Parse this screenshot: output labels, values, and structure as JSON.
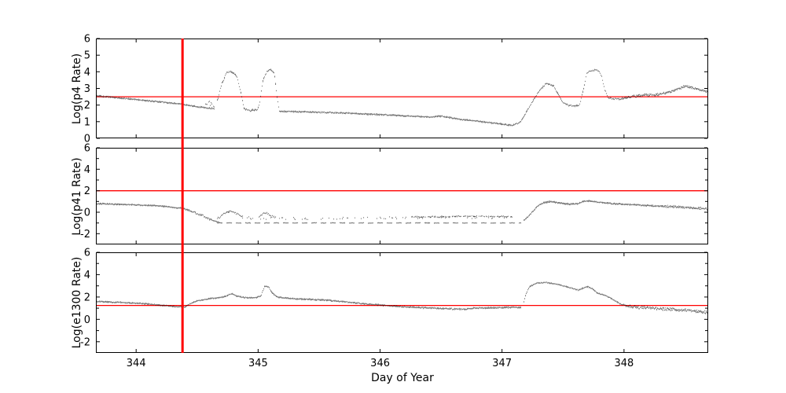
{
  "figure": {
    "background": "#ffffff",
    "axis_color": "#000000",
    "data_color": "#000000",
    "threshold_color": "#ff0000"
  },
  "xlabel": "Day of Year",
  "chart_data": [
    {
      "type": "scatter",
      "ylabel": "Log(p4 Rate)",
      "xlim": [
        343.67,
        348.69
      ],
      "ylim": [
        0,
        6
      ],
      "xticks": [
        344,
        345,
        346,
        347,
        348
      ],
      "xticklabels": [
        "344",
        "345",
        "346",
        "347",
        "348"
      ],
      "yticks_major": [
        0,
        1,
        2,
        3,
        4,
        5,
        6
      ],
      "yticklabels": [
        "0",
        "1",
        "2",
        "3",
        "4",
        "5",
        "6"
      ],
      "yticks_minor": [],
      "hline": 2.5,
      "vline": 344.38,
      "grid": false,
      "segments": [
        {
          "points": [
            [
              343.67,
              2.55
            ],
            [
              344.0,
              2.33
            ],
            [
              344.38,
              2.05
            ],
            [
              344.52,
              1.88
            ],
            [
              344.64,
              1.78
            ]
          ],
          "density": 2,
          "spread": 0.05
        },
        {
          "points": [
            [
              344.56,
              2.0
            ],
            [
              344.6,
              2.15
            ],
            [
              344.64,
              1.95
            ]
          ],
          "density": 0.7,
          "spread": 0.2
        },
        {
          "points": [
            [
              344.66,
              2.2
            ],
            [
              344.7,
              3.3
            ],
            [
              344.74,
              3.95
            ],
            [
              344.78,
              4.0
            ],
            [
              344.82,
              3.75
            ],
            [
              344.86,
              2.6
            ],
            [
              344.88,
              1.8
            ],
            [
              344.92,
              1.68
            ],
            [
              344.99,
              1.7
            ],
            [
              345.01,
              2.2
            ],
            [
              345.04,
              3.6
            ],
            [
              345.07,
              4.0
            ],
            [
              345.1,
              4.15
            ],
            [
              345.13,
              3.9
            ],
            [
              345.15,
              2.6
            ],
            [
              345.17,
              1.7
            ]
          ],
          "density": 1.6,
          "spread": 0.07
        },
        {
          "points": [
            [
              345.17,
              1.62
            ],
            [
              345.6,
              1.55
            ],
            [
              346.0,
              1.42
            ],
            [
              346.4,
              1.28
            ],
            [
              346.5,
              1.33
            ],
            [
              346.65,
              1.15
            ],
            [
              347.0,
              0.85
            ],
            [
              347.08,
              0.78
            ]
          ],
          "density": 2,
          "spread": 0.05
        },
        {
          "points": [
            [
              347.08,
              0.78
            ],
            [
              347.15,
              1.0
            ],
            [
              347.22,
              1.9
            ],
            [
              347.3,
              2.85
            ],
            [
              347.36,
              3.3
            ],
            [
              347.42,
              3.15
            ],
            [
              347.46,
              2.6
            ],
            [
              347.5,
              2.1
            ],
            [
              347.55,
              1.97
            ],
            [
              347.63,
              1.95
            ]
          ],
          "density": 1.6,
          "spread": 0.06
        },
        {
          "points": [
            [
              347.63,
              2.0
            ],
            [
              347.66,
              2.8
            ],
            [
              347.69,
              3.9
            ],
            [
              347.72,
              4.05
            ],
            [
              347.78,
              4.1
            ],
            [
              347.81,
              3.8
            ],
            [
              347.84,
              2.9
            ],
            [
              347.87,
              2.4
            ],
            [
              347.95,
              2.35
            ]
          ],
          "density": 1.2,
          "spread": 0.07
        },
        {
          "points": [
            [
              347.95,
              2.35
            ],
            [
              348.1,
              2.55
            ],
            [
              348.2,
              2.6
            ],
            [
              348.3,
              2.65
            ],
            [
              348.4,
              2.85
            ],
            [
              348.5,
              3.15
            ],
            [
              348.57,
              3.0
            ],
            [
              348.69,
              2.78
            ]
          ],
          "density": 2,
          "spread": 0.09
        }
      ]
    },
    {
      "type": "scatter",
      "ylabel": "Log(p41 Rate)",
      "xlim": [
        343.67,
        348.69
      ],
      "ylim": [
        -3,
        6
      ],
      "xticks": [
        344,
        345,
        346,
        347,
        348
      ],
      "xticklabels": [],
      "yticks_major": [
        -2,
        0,
        2,
        4,
        6
      ],
      "yticklabels": [
        "-2",
        "0",
        "2",
        "4",
        "6"
      ],
      "yticks_minor": [
        -1,
        1,
        3,
        5
      ],
      "hline": 2.0,
      "vline": 344.38,
      "grid": false,
      "segments": [
        {
          "points": [
            [
              343.67,
              0.8
            ],
            [
              344.0,
              0.68
            ],
            [
              344.2,
              0.58
            ],
            [
              344.38,
              0.35
            ]
          ],
          "density": 2,
          "spread": 0.07
        },
        {
          "points": [
            [
              344.38,
              0.35
            ],
            [
              344.46,
              0.05
            ],
            [
              344.54,
              -0.35
            ],
            [
              344.62,
              -0.75
            ],
            [
              344.68,
              -0.95
            ]
          ],
          "density": 1.5,
          "spread": 0.12
        },
        {
          "points": [
            [
              344.66,
              -0.6
            ],
            [
              344.7,
              -0.3
            ],
            [
              344.74,
              0.0
            ],
            [
              344.78,
              0.05
            ],
            [
              344.83,
              -0.2
            ],
            [
              344.87,
              -0.45
            ]
          ],
          "density": 1.2,
          "spread": 0.12
        },
        {
          "points": [
            [
              345.0,
              -0.5
            ],
            [
              345.03,
              -0.2
            ],
            [
              345.06,
              -0.05
            ],
            [
              345.09,
              -0.25
            ],
            [
              345.13,
              -0.5
            ]
          ],
          "density": 1.0,
          "spread": 0.12
        },
        {
          "points": [
            [
              344.66,
              -1.0
            ],
            [
              347.15,
              -1.0
            ]
          ],
          "density": 1.1,
          "spread": 0.025,
          "dash": true
        },
        {
          "points": [
            [
              344.9,
              -0.55
            ],
            [
              345.6,
              -0.6
            ],
            [
              346.2,
              -0.5
            ],
            [
              347.1,
              -0.5
            ]
          ],
          "density": 0.25,
          "spread": 0.15
        },
        {
          "points": [
            [
              346.25,
              -0.45
            ],
            [
              346.7,
              -0.38
            ],
            [
              347.08,
              -0.42
            ]
          ],
          "density": 0.8,
          "spread": 0.07
        },
        {
          "points": [
            [
              347.17,
              -0.8
            ],
            [
              347.22,
              -0.3
            ],
            [
              347.28,
              0.5
            ],
            [
              347.34,
              0.9
            ],
            [
              347.4,
              1.0
            ],
            [
              347.47,
              0.85
            ],
            [
              347.55,
              0.75
            ],
            [
              347.62,
              0.8
            ],
            [
              347.66,
              1.0
            ],
            [
              347.72,
              1.05
            ],
            [
              347.78,
              0.95
            ],
            [
              347.9,
              0.8
            ],
            [
              348.1,
              0.68
            ],
            [
              348.3,
              0.55
            ]
          ],
          "density": 2,
          "spread": 0.08
        },
        {
          "points": [
            [
              348.3,
              0.55
            ],
            [
              348.5,
              0.45
            ],
            [
              348.69,
              0.3
            ]
          ],
          "density": 2,
          "spread": 0.13
        }
      ]
    },
    {
      "type": "scatter",
      "ylabel": "Log(e1300 Rate)",
      "xlim": [
        343.67,
        348.69
      ],
      "ylim": [
        -3,
        6
      ],
      "xticks": [
        344,
        345,
        346,
        347,
        348
      ],
      "xticklabels": [
        "344",
        "345",
        "346",
        "347",
        "348"
      ],
      "yticks_major": [
        -2,
        0,
        2,
        4,
        6
      ],
      "yticklabels": [
        "-2",
        "0",
        "2",
        "4",
        "6"
      ],
      "yticks_minor": [
        -1,
        1,
        3,
        5
      ],
      "hline": 1.25,
      "vline": 344.38,
      "grid": false,
      "segments": [
        {
          "points": [
            [
              343.67,
              1.6
            ],
            [
              344.0,
              1.45
            ],
            [
              344.15,
              1.32
            ],
            [
              344.3,
              1.15
            ],
            [
              344.4,
              1.1
            ]
          ],
          "density": 2,
          "spread": 0.07
        },
        {
          "points": [
            [
              344.4,
              1.12
            ],
            [
              344.45,
              1.45
            ],
            [
              344.5,
              1.65
            ],
            [
              344.6,
              1.85
            ],
            [
              344.7,
              1.98
            ],
            [
              344.75,
              2.15
            ],
            [
              344.78,
              2.3
            ],
            [
              344.82,
              2.1
            ],
            [
              344.88,
              1.95
            ],
            [
              344.98,
              1.93
            ],
            [
              345.02,
              2.1
            ],
            [
              345.05,
              2.95
            ],
            [
              345.08,
              2.95
            ],
            [
              345.11,
              2.4
            ],
            [
              345.15,
              2.0
            ],
            [
              345.25,
              1.88
            ]
          ],
          "density": 2,
          "spread": 0.06
        },
        {
          "points": [
            [
              345.25,
              1.88
            ],
            [
              345.6,
              1.68
            ],
            [
              345.9,
              1.35
            ],
            [
              346.2,
              1.12
            ],
            [
              346.5,
              0.97
            ],
            [
              346.7,
              0.9
            ],
            [
              346.78,
              1.02
            ],
            [
              347.0,
              1.05
            ],
            [
              347.15,
              1.08
            ]
          ],
          "density": 2,
          "spread": 0.08
        },
        {
          "points": [
            [
              347.17,
              1.3
            ],
            [
              347.19,
              2.2
            ],
            [
              347.22,
              2.9
            ],
            [
              347.28,
              3.25
            ],
            [
              347.35,
              3.3
            ],
            [
              347.45,
              3.15
            ],
            [
              347.55,
              2.85
            ],
            [
              347.62,
              2.62
            ],
            [
              347.66,
              2.8
            ],
            [
              347.7,
              2.92
            ],
            [
              347.74,
              2.7
            ],
            [
              347.78,
              2.35
            ],
            [
              347.85,
              2.1
            ],
            [
              347.92,
              1.7
            ],
            [
              347.98,
              1.3
            ]
          ],
          "density": 1.8,
          "spread": 0.06
        },
        {
          "points": [
            [
              347.98,
              1.3
            ],
            [
              348.1,
              1.1
            ],
            [
              348.3,
              0.95
            ],
            [
              348.5,
              0.82
            ],
            [
              348.69,
              0.62
            ]
          ],
          "density": 2,
          "spread": 0.16
        }
      ]
    }
  ]
}
